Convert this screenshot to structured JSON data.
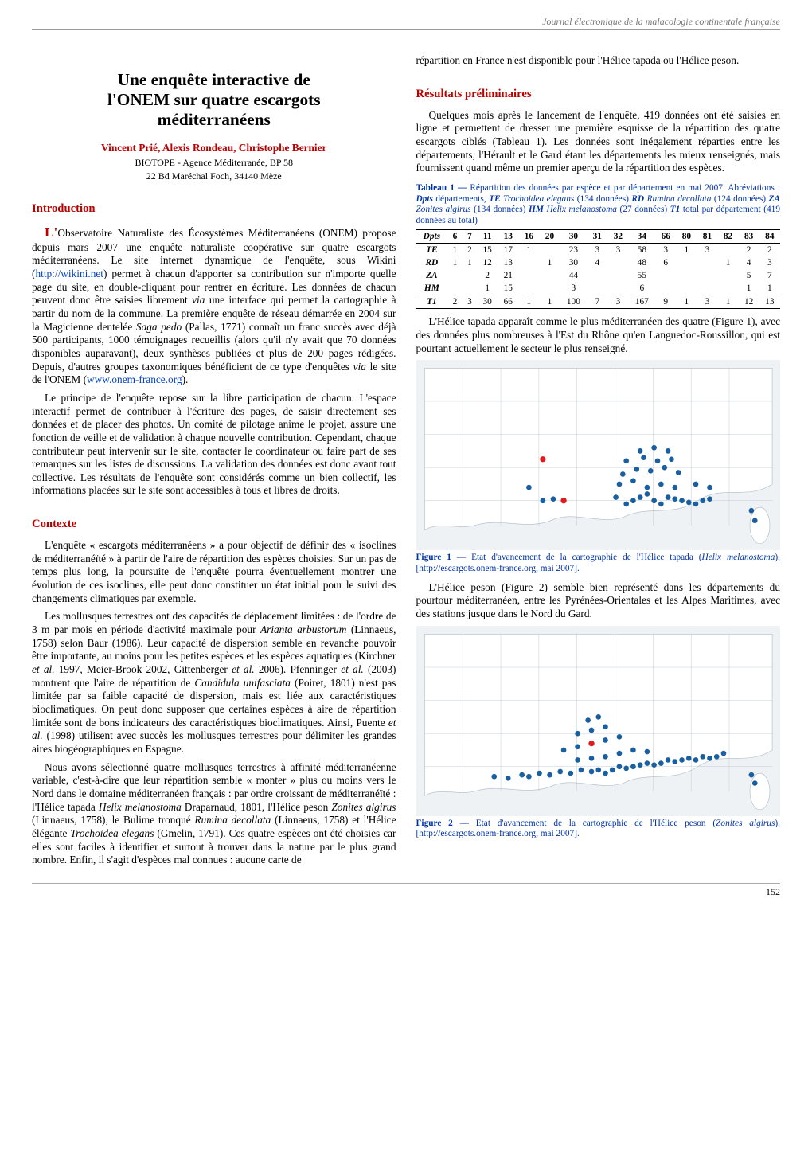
{
  "running_header": "Journal électronique de la malacologie continentale française",
  "title": "Une enquête interactive de l'ONEM sur quatre escargots méditerranéens",
  "authors": "Vincent Prié, Alexis Rondeau, Christophe Bernier",
  "affil1": "BIOTOPE - Agence Méditerranée, BP 58",
  "affil2": "22 Bd Maréchal Foch, 34140 Mèze",
  "h_intro": "Introduction",
  "h_context": "Contexte",
  "h_results": "Résultats préliminaires",
  "intro_p1a": "L'Observatoire Naturaliste des Écosystèmes Méditerranéens (ONEM) propose depuis mars 2007 une enquête naturaliste coopérative sur quatre escargots méditerranéens. Le site internet dynamique de l'enquête, sous Wikini (",
  "intro_p1_link1": "http://wikini.net",
  "intro_p1b": ") permet à chacun d'apporter sa contribution sur n'importe quelle page du site, en double-cliquant pour rentrer en écriture. Les données de chacun peuvent donc être saisies librement ",
  "intro_p1c": " une interface qui permet la cartographie à partir du nom de la commune. La première enquête de réseau démarrée en 2004 sur la Magicienne dentelée ",
  "intro_p1d": " (Pallas, 1771) connaît un franc succès avec déjà 500 participants, 1000 témoignages recueillis (alors qu'il n'y avait que 70 données disponibles auparavant), deux synthèses publiées et plus de 200 pages rédigées. Depuis, d'autres groupes taxonomiques bénéficient de ce type d'enquêtes ",
  "intro_p1e": " le site de l'ONEM (",
  "intro_p1_link2": "www.onem-france.org",
  "intro_p1f": ").",
  "intro_p2": "Le principe de l'enquête repose sur la libre participation de chacun. L'espace interactif permet de contribuer à l'écriture des pages, de saisir directement ses données et de placer des photos. Un comité de pilotage anime le projet, assure une fonction de veille et de validation à chaque nouvelle contribution. Cependant, chaque contributeur peut intervenir sur le site, contacter le coordinateur ou faire part de ses remarques sur les listes de discussions. La validation des données est donc avant tout collective. Les résultats de l'enquête sont considérés comme un bien collectif, les informations placées sur le site sont accessibles à tous et libres de droits.",
  "ctx_p1": "L'enquête « escargots méditerranéens » a pour objectif de définir des « isoclines de méditerranéïté » à partir de l'aire de répartition des espèces choisies. Sur un pas de temps plus long, la poursuite de l'enquête pourra éventuellement montrer une évolution de ces isoclines, elle peut donc constituer un état initial pour le suivi des changements climatiques par exemple.",
  "ctx_p2a": "Les mollusques terrestres ont des capacités de déplacement limitées : de l'ordre de 3 m par mois en période d'activité maximale pour ",
  "ctx_p2b": " (Linnaeus, 1758) selon Baur (1986). Leur capacité de dispersion semble en revanche pouvoir être importante, au moins pour les petites espèces et les espèces aquatiques (Kirchner ",
  "ctx_p2c": " 1997, Meier-Brook 2002, Gittenberger ",
  "ctx_p2d": " 2006). Pfenninger ",
  "ctx_p2e": " (2003) montrent que l'aire de répartition de ",
  "ctx_p2f": " (Poiret, 1801) n'est pas limitée par sa faible capacité de dispersion, mais est liée aux caractéristiques bioclimatiques. On peut donc supposer que certaines espèces à aire de répartition limitée sont de bons indicateurs des caractéristiques bioclimatiques. Ainsi, Puente ",
  "ctx_p2g": " (1998) utilisent avec succès les mollusques terrestres pour délimiter les grandes aires biogéographiques en Espagne.",
  "ctx_p3a": "Nous avons sélectionné quatre mollusques terrestres à affinité méditerranéenne variable, c'est-à-dire que leur répartition semble « monter » plus ou moins vers le Nord dans le domaine méditerranéen français : par ordre croissant de méditerranéïté : l'Hélice tapada ",
  "ctx_p3b": " Draparnaud, 1801, l'Hélice peson ",
  "ctx_p3c": " (Linnaeus, 1758), le Bulime tronqué ",
  "ctx_p3d": " (Linnaeus, 1758) et l'Hélice élégante ",
  "ctx_p3e": " (Gmelin, 1791). Ces quatre espèces ont été choisies car elles sont faciles à identifier et surtout à trouver dans la nature par le plus grand nombre. Enfin, il s'agit d'espèces mal connues : aucune carte de ",
  "right_p0": "répartition en France n'est disponible pour l'Hélice tapada ou l'Hélice peson.",
  "res_p1": "Quelques mois après le lancement de l'enquête, 419 données ont été saisies en ligne et permettent de dresser une première esquisse de la répartition des quatre escargots ciblés (Tableau 1). Les données sont inégalement réparties entre les départements, l'Hérault et le Gard étant les départements les mieux renseignés, mais fournissent quand même un premier aperçu de la répartition des espèces.",
  "tbl_cap_a": "Tableau 1 —",
  "tbl_cap_b": " Répartition des données par espèce et par département en mai 2007. Abréviations : ",
  "tbl_cap_c": " départements, ",
  "tbl_cap_d": " (134 données) ",
  "tbl_cap_e": " (124 données) ",
  "tbl_cap_f": " (134 données) ",
  "tbl_cap_g": " (27 données) ",
  "tbl_cap_h": " total par département (419 données au total)",
  "table": {
    "columns": [
      "Dpts",
      "6",
      "7",
      "11",
      "13",
      "16",
      "20",
      "30",
      "31",
      "32",
      "34",
      "66",
      "80",
      "81",
      "82",
      "83",
      "84"
    ],
    "rows": [
      [
        "TE",
        "1",
        "2",
        "15",
        "17",
        "1",
        "",
        "23",
        "3",
        "3",
        "58",
        "3",
        "1",
        "3",
        "",
        "2",
        "2"
      ],
      [
        "RD",
        "1",
        "1",
        "12",
        "13",
        "",
        "1",
        "30",
        "4",
        "",
        "48",
        "6",
        "",
        "",
        "1",
        "4",
        "3"
      ],
      [
        "ZA",
        "",
        "",
        "2",
        "21",
        "",
        "",
        "44",
        "",
        "",
        "55",
        "",
        "",
        "",
        "",
        "5",
        "7"
      ],
      [
        "HM",
        "",
        "",
        "1",
        "15",
        "",
        "",
        "3",
        "",
        "",
        "6",
        "",
        "",
        "",
        "",
        "1",
        "1"
      ],
      [
        "T1",
        "2",
        "3",
        "30",
        "66",
        "1",
        "1",
        "100",
        "7",
        "3",
        "167",
        "9",
        "1",
        "3",
        "1",
        "12",
        "13"
      ]
    ]
  },
  "res_p2": "L'Hélice tapada apparaît comme le plus méditerranéen des quatre (Figure 1), avec des données plus nombreuses à l'Est du Rhône qu'en Languedoc-Roussillon, qui est pourtant actuellement le secteur le plus renseigné.",
  "fig1_cap_a": "Figure 1 —",
  "fig1_cap_b": " Etat d'avancement de la cartographie de l'Hélice tapada (",
  "fig1_cap_c": "), [http://escargots.onem-france.org, mai 2007].",
  "res_p3": "L'Hélice peson (Figure 2) semble bien représenté dans les départements du pourtour méditerranéen, entre les Pyrénées-Orientales et les Alpes Maritimes, avec des stations jusque dans le Nord du Gard.",
  "fig2_cap_a": "Figure 2 —",
  "fig2_cap_b": " Etat d'avancement de la cartographie de l'Hélice peson (",
  "fig2_cap_c": "), [http://escargots.onem-france.org, mai 2007].",
  "page_num": "152",
  "map": {
    "outline_color": "#b8c4ce",
    "bg_color": "#eef2f5",
    "dot_color_dense": "#1a5fa0",
    "dot_color_highlight": "#e01b1b",
    "fig1_points": [
      [
        0.3,
        0.72
      ],
      [
        0.34,
        0.8
      ],
      [
        0.37,
        0.79
      ],
      [
        0.4,
        0.8
      ],
      [
        0.34,
        0.55
      ],
      [
        0.55,
        0.78
      ],
      [
        0.58,
        0.82
      ],
      [
        0.6,
        0.8
      ],
      [
        0.62,
        0.78
      ],
      [
        0.64,
        0.76
      ],
      [
        0.66,
        0.8
      ],
      [
        0.68,
        0.82
      ],
      [
        0.7,
        0.78
      ],
      [
        0.72,
        0.79
      ],
      [
        0.74,
        0.8
      ],
      [
        0.76,
        0.81
      ],
      [
        0.78,
        0.82
      ],
      [
        0.8,
        0.8
      ],
      [
        0.82,
        0.79
      ],
      [
        0.56,
        0.7
      ],
      [
        0.6,
        0.68
      ],
      [
        0.64,
        0.72
      ],
      [
        0.68,
        0.7
      ],
      [
        0.72,
        0.72
      ],
      [
        0.78,
        0.7
      ],
      [
        0.82,
        0.72
      ],
      [
        0.57,
        0.64
      ],
      [
        0.61,
        0.61
      ],
      [
        0.65,
        0.62
      ],
      [
        0.69,
        0.6
      ],
      [
        0.73,
        0.63
      ],
      [
        0.58,
        0.56
      ],
      [
        0.63,
        0.54
      ],
      [
        0.67,
        0.56
      ],
      [
        0.71,
        0.55
      ],
      [
        0.62,
        0.5
      ],
      [
        0.66,
        0.48
      ],
      [
        0.7,
        0.5
      ],
      [
        0.95,
        0.92
      ],
      [
        0.94,
        0.86
      ]
    ],
    "fig1_highlights": [
      [
        0.34,
        0.55
      ],
      [
        0.4,
        0.8
      ]
    ],
    "fig2_points": [
      [
        0.2,
        0.86
      ],
      [
        0.24,
        0.87
      ],
      [
        0.28,
        0.85
      ],
      [
        0.3,
        0.86
      ],
      [
        0.33,
        0.84
      ],
      [
        0.36,
        0.85
      ],
      [
        0.39,
        0.83
      ],
      [
        0.42,
        0.84
      ],
      [
        0.45,
        0.82
      ],
      [
        0.48,
        0.83
      ],
      [
        0.5,
        0.82
      ],
      [
        0.52,
        0.84
      ],
      [
        0.54,
        0.82
      ],
      [
        0.56,
        0.8
      ],
      [
        0.58,
        0.81
      ],
      [
        0.6,
        0.8
      ],
      [
        0.62,
        0.79
      ],
      [
        0.64,
        0.78
      ],
      [
        0.66,
        0.79
      ],
      [
        0.68,
        0.78
      ],
      [
        0.7,
        0.76
      ],
      [
        0.72,
        0.77
      ],
      [
        0.74,
        0.76
      ],
      [
        0.76,
        0.75
      ],
      [
        0.78,
        0.76
      ],
      [
        0.8,
        0.74
      ],
      [
        0.82,
        0.75
      ],
      [
        0.84,
        0.74
      ],
      [
        0.86,
        0.72
      ],
      [
        0.44,
        0.76
      ],
      [
        0.48,
        0.75
      ],
      [
        0.52,
        0.74
      ],
      [
        0.56,
        0.72
      ],
      [
        0.6,
        0.7
      ],
      [
        0.64,
        0.71
      ],
      [
        0.4,
        0.7
      ],
      [
        0.44,
        0.68
      ],
      [
        0.48,
        0.66
      ],
      [
        0.52,
        0.64
      ],
      [
        0.56,
        0.62
      ],
      [
        0.44,
        0.6
      ],
      [
        0.48,
        0.58
      ],
      [
        0.52,
        0.56
      ],
      [
        0.47,
        0.52
      ],
      [
        0.5,
        0.5
      ],
      [
        0.95,
        0.9
      ],
      [
        0.94,
        0.85
      ]
    ],
    "fig2_highlights": [
      [
        0.48,
        0.66
      ]
    ]
  }
}
